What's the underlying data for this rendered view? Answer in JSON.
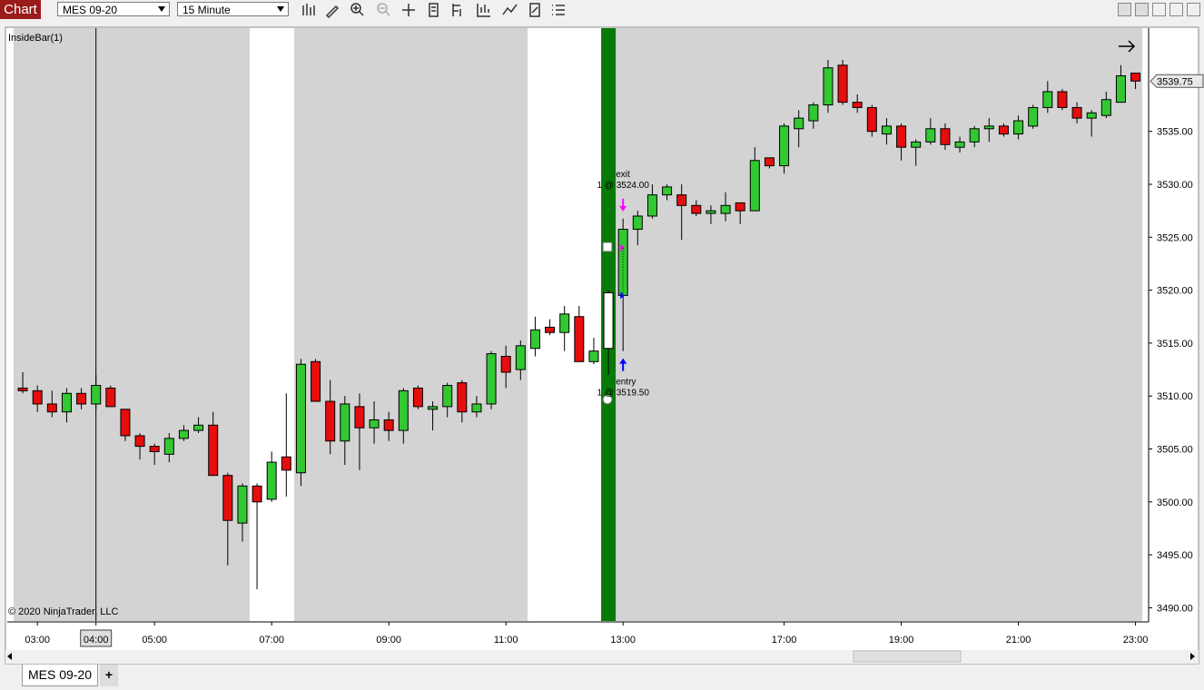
{
  "toolbar": {
    "title": "Chart",
    "instrument": "MES 09-20",
    "interval": "15 Minute"
  },
  "tabs": [
    "MES 09-20",
    "+"
  ],
  "chart_data": {
    "type": "candlestick",
    "indicator": "InsideBar(1)",
    "copyright": "© 2020 NinjaTrader, LLC",
    "categories": [
      null,
      "03:00",
      null,
      null,
      null,
      "04:00",
      null,
      null,
      null,
      "05:00",
      null,
      null,
      null,
      null,
      null,
      null,
      null,
      "07:00",
      null,
      null,
      null,
      null,
      null,
      null,
      null,
      "09:00",
      null,
      null,
      null,
      null,
      null,
      null,
      null,
      "11:00",
      null,
      null,
      null,
      null,
      null,
      null,
      null,
      "13:00",
      null,
      null,
      null,
      null,
      null,
      null,
      null,
      null,
      null,
      null,
      "17:00",
      null,
      null,
      null,
      null,
      null,
      null,
      null,
      "19:00",
      null,
      null,
      null,
      null,
      null,
      null,
      null,
      "21:00",
      null,
      null,
      null,
      null,
      null,
      null,
      null,
      "23:00"
    ],
    "open": [
      3510.75,
      3510.5,
      3509.25,
      3508.5,
      3510.25,
      3509.25,
      3510.75,
      3508.75,
      3506.25,
      3505.25,
      3504.5,
      3506,
      3506.75,
      3507.25,
      3502.5,
      3498,
      3501.5,
      3500.25,
      3504.25,
      3502.75,
      3513.25,
      3509.5,
      3505.75,
      3509,
      3507,
      3507.75,
      3506.75,
      3510.75,
      3508.75,
      3509,
      3511.25,
      3508.5,
      3509.25,
      3513.75,
      3512.5,
      3514.5,
      3516.5,
      3516,
      3517.5,
      3513.25,
      3514.5,
      3519.5,
      3525.75,
      3527,
      3529,
      3529,
      3528,
      3527.25,
      3527.25,
      3528.25,
      3527.5,
      3532.5,
      3531.75,
      3535.25,
      3536,
      3537.5,
      3541.25,
      3537.75,
      3537.25,
      3534.75,
      3535.5,
      3533.5,
      3534,
      3535.25,
      3533.5,
      3534,
      3535.25,
      3535.5,
      3534.75,
      3535.5,
      3537.25,
      3538.75,
      3537.25,
      3536.25,
      3536.5,
      3537.75,
      3540.5
    ],
    "high": [
      3512.25,
      3511,
      3510.5,
      3510.75,
      3510.75,
      3512,
      3511,
      3508.75,
      3506.5,
      3505.5,
      3506.5,
      3507.25,
      3508,
      3508.5,
      3502.75,
      3501.75,
      3501.75,
      3504.75,
      3510.25,
      3513.5,
      3513.5,
      3511.5,
      3510,
      3510.25,
      3509.5,
      3508.5,
      3510.75,
      3511,
      3509.5,
      3511.25,
      3511.5,
      3510,
      3514.25,
      3514.75,
      3515.25,
      3517.5,
      3517.25,
      3518.5,
      3518.5,
      3515.5,
      3520,
      3526.75,
      3527.5,
      3530,
      3530,
      3530,
      3528.5,
      3528,
      3529.25,
      3528.25,
      3533.5,
      3532.5,
      3535.75,
      3537,
      3537.75,
      3541.75,
      3541.75,
      3538.5,
      3537.5,
      3536.25,
      3535.75,
      3534.25,
      3536.25,
      3535.75,
      3534.5,
      3535.5,
      3536.25,
      3535.75,
      3536.5,
      3537.5,
      3539.75,
      3539,
      3537.75,
      3537,
      3538.75,
      3541.25,
      3540.5
    ],
    "low": [
      3510.25,
      3508.5,
      3508,
      3507.5,
      3508.75,
      3508.75,
      3509,
      3505.75,
      3504,
      3503.5,
      3503.75,
      3505.75,
      3506.5,
      3502.5,
      3494,
      3496.25,
      3491.75,
      3500,
      3500.5,
      3501.5,
      3509.5,
      3504.5,
      3503.5,
      3503,
      3505.5,
      3505.75,
      3505.5,
      3508.75,
      3506.75,
      3508,
      3507.5,
      3508,
      3508.75,
      3510.75,
      3511.5,
      3513.75,
      3515.75,
      3514.25,
      3513.25,
      3513,
      3512,
      3514.25,
      3524.25,
      3526.75,
      3528.5,
      3524.75,
      3527,
      3526.25,
      3526.5,
      3526.25,
      3527.5,
      3531.5,
      3531,
      3533.5,
      3535.25,
      3536.75,
      3537.5,
      3536.75,
      3534.5,
      3533.75,
      3532.25,
      3531.75,
      3533.75,
      3533.25,
      3533,
      3533.5,
      3534,
      3534.5,
      3534.25,
      3535.25,
      3536.75,
      3537,
      3535.75,
      3534.5,
      3536.25,
      3537.75,
      3539
    ],
    "close": [
      3510.5,
      3509.25,
      3508.5,
      3510.25,
      3509.25,
      3511,
      3509,
      3506.25,
      3505.25,
      3504.75,
      3506,
      3506.75,
      3507.25,
      3502.5,
      3498.25,
      3501.5,
      3500,
      3503.75,
      3503,
      3513,
      3509.5,
      3505.75,
      3509.25,
      3507,
      3507.75,
      3506.75,
      3510.5,
      3509,
      3509,
      3511,
      3508.5,
      3509.25,
      3514,
      3512.25,
      3514.75,
      3516.25,
      3516,
      3517.75,
      3513.25,
      3514.25,
      3519.75,
      3525.75,
      3527,
      3529,
      3529.75,
      3528,
      3527.25,
      3527.5,
      3528,
      3527.5,
      3532.25,
      3531.75,
      3535.5,
      3536.25,
      3537.5,
      3541,
      3537.75,
      3537.25,
      3535,
      3535.5,
      3533.5,
      3534,
      3535.25,
      3533.75,
      3534,
      3535.25,
      3535.5,
      3534.75,
      3536,
      3537.25,
      3538.75,
      3537.25,
      3536.25,
      3536.75,
      3538,
      3540.25,
      3539.75
    ],
    "up_color": "#32c832",
    "down_color": "#e60d0d",
    "inside_bar": {
      "bar": 40,
      "color": "#ffffff",
      "background": "#077a07"
    },
    "trades": [
      {
        "name": "entry",
        "label": "1 @ 3519.50",
        "price": 3519.5,
        "bar": 41,
        "color": "#0000ff"
      },
      {
        "name": "exit",
        "label": "1 @ 3524.00",
        "price": 3524,
        "bar": 41,
        "color": "#ff00ff"
      }
    ],
    "last_price": {
      "value": 3539.75,
      "label": "3539.75"
    },
    "crosshair": 5,
    "ylim": [
      3488.75,
      3544.75
    ],
    "yticks": [
      {
        "value": 3490,
        "label": "3490.00"
      },
      {
        "value": 3495,
        "label": "3495.00"
      },
      {
        "value": 3500,
        "label": "3500.00"
      },
      {
        "value": 3505,
        "label": "3505.00"
      },
      {
        "value": 3510,
        "label": "3510.00"
      },
      {
        "value": 3515,
        "label": "3515.00"
      },
      {
        "value": 3520,
        "label": "3520.00"
      },
      {
        "value": 3525,
        "label": "3525.00"
      },
      {
        "value": 3530,
        "label": "3530.00"
      },
      {
        "value": 3535,
        "label": "3535.00"
      }
    ]
  }
}
